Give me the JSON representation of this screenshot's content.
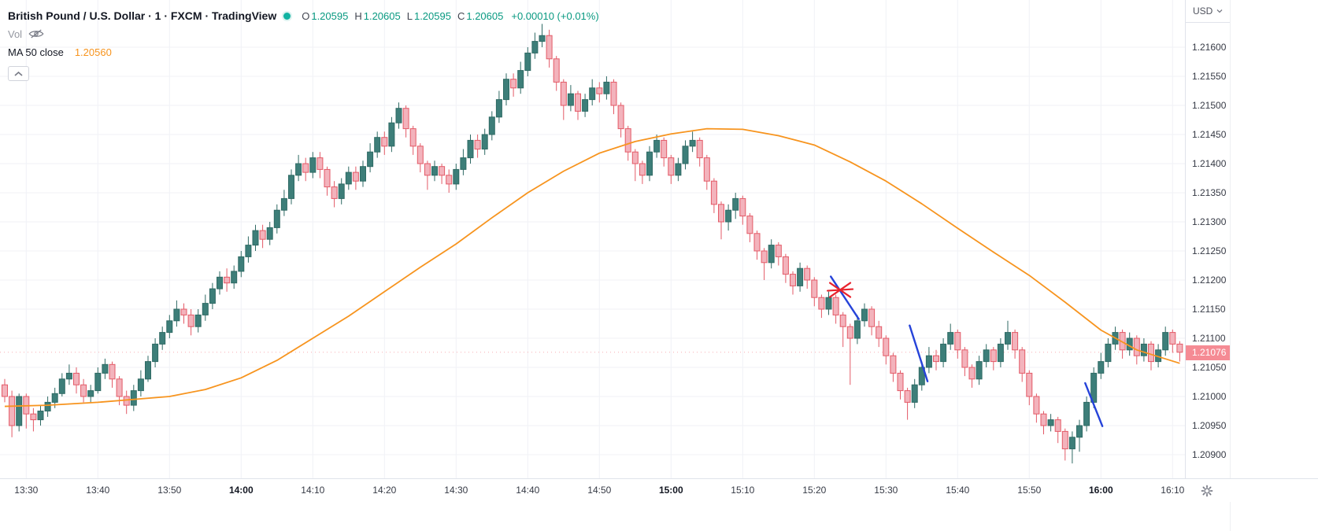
{
  "header": {
    "symbol_title": "British Pound / U.S. Dollar · 1 · FXCM · TradingView",
    "ohlc": {
      "o_label": "O",
      "o": "1.20595",
      "h_label": "H",
      "h": "1.20605",
      "l_label": "L",
      "l": "1.20595",
      "c_label": "C",
      "c": "1.20605",
      "change": "+0.00010 (+0.01%)"
    },
    "vol_label": "Vol",
    "ma_label": "MA 50 close",
    "ma_value": "1.20560"
  },
  "axis": {
    "currency_label": "USD"
  },
  "colors": {
    "up": "#3d7e79",
    "up_border": "#2f6a64",
    "down": "#f3b3bc",
    "down_border": "#e35a67",
    "ma": "#f7941e",
    "grid": "#f0f2f6",
    "drawing_blue": "#2643d9",
    "drawing_red": "#e8232d",
    "last_price_bg": "#f58b94",
    "accent_green": "#089981"
  },
  "chart_data": {
    "type": "candlestick",
    "title": "British Pound / U.S. Dollar",
    "interval": "1",
    "exchange": "FXCM",
    "ylim": [
      1.2088,
      1.2165
    ],
    "grid": true,
    "last_price": 1.21076,
    "price_gridlines": [
      1.216,
      1.2155,
      1.215,
      1.2145,
      1.214,
      1.2135,
      1.213,
      1.2125,
      1.212,
      1.2115,
      1.211,
      1.2105,
      1.21,
      1.2095,
      1.209
    ],
    "time_ticks": [
      {
        "i": 3,
        "label": "13:30",
        "bold": false
      },
      {
        "i": 13,
        "label": "13:40",
        "bold": false
      },
      {
        "i": 23,
        "label": "13:50",
        "bold": false
      },
      {
        "i": 33,
        "label": "14:00",
        "bold": true
      },
      {
        "i": 43,
        "label": "14:10",
        "bold": false
      },
      {
        "i": 53,
        "label": "14:20",
        "bold": false
      },
      {
        "i": 63,
        "label": "14:30",
        "bold": false
      },
      {
        "i": 73,
        "label": "14:40",
        "bold": false
      },
      {
        "i": 83,
        "label": "14:50",
        "bold": false
      },
      {
        "i": 93,
        "label": "15:00",
        "bold": true
      },
      {
        "i": 103,
        "label": "15:10",
        "bold": false
      },
      {
        "i": 113,
        "label": "15:20",
        "bold": false
      },
      {
        "i": 123,
        "label": "15:30",
        "bold": false
      },
      {
        "i": 133,
        "label": "15:40",
        "bold": false
      },
      {
        "i": 143,
        "label": "15:50",
        "bold": false
      },
      {
        "i": 153,
        "label": "16:00",
        "bold": true
      },
      {
        "i": 163,
        "label": "16:10",
        "bold": false
      }
    ],
    "candles": [
      [
        1.2102,
        1.2103,
        1.2099,
        1.21
      ],
      [
        1.21,
        1.2101,
        1.2093,
        1.2095
      ],
      [
        1.2095,
        1.21005,
        1.2094,
        1.21
      ],
      [
        1.21,
        1.21005,
        1.20945,
        1.2097
      ],
      [
        1.2097,
        1.2098,
        1.2094,
        1.2096
      ],
      [
        1.2096,
        1.20985,
        1.2095,
        1.20975
      ],
      [
        1.20975,
        1.21,
        1.20965,
        1.2099
      ],
      [
        1.2099,
        1.21015,
        1.2098,
        1.21005
      ],
      [
        1.21005,
        1.2104,
        1.21,
        1.2103
      ],
      [
        1.2103,
        1.21055,
        1.2102,
        1.2104
      ],
      [
        1.2104,
        1.2105,
        1.21005,
        1.2102
      ],
      [
        1.2102,
        1.2103,
        1.2099,
        1.21
      ],
      [
        1.21,
        1.2102,
        1.2099,
        1.2101
      ],
      [
        1.2101,
        1.2105,
        1.21005,
        1.2104
      ],
      [
        1.2104,
        1.21065,
        1.2103,
        1.21055
      ],
      [
        1.21055,
        1.2106,
        1.21015,
        1.2103
      ],
      [
        1.2103,
        1.21035,
        1.20985,
        1.21
      ],
      [
        1.21,
        1.2101,
        1.2097,
        1.20985
      ],
      [
        1.20985,
        1.2102,
        1.20975,
        1.2101
      ],
      [
        1.2101,
        1.21045,
        1.21,
        1.2103
      ],
      [
        1.2103,
        1.2107,
        1.21025,
        1.2106
      ],
      [
        1.2106,
        1.211,
        1.2105,
        1.2109
      ],
      [
        1.2109,
        1.2112,
        1.2108,
        1.2111
      ],
      [
        1.2111,
        1.2114,
        1.211,
        1.2113
      ],
      [
        1.2113,
        1.21165,
        1.2112,
        1.2115
      ],
      [
        1.2115,
        1.2116,
        1.21125,
        1.2114
      ],
      [
        1.2114,
        1.2115,
        1.21105,
        1.2112
      ],
      [
        1.2112,
        1.2115,
        1.2111,
        1.2114
      ],
      [
        1.2114,
        1.21175,
        1.2113,
        1.2116
      ],
      [
        1.2116,
        1.21195,
        1.2115,
        1.21185
      ],
      [
        1.21185,
        1.21215,
        1.21175,
        1.21205
      ],
      [
        1.21205,
        1.2122,
        1.2118,
        1.21195
      ],
      [
        1.21195,
        1.21225,
        1.21185,
        1.21215
      ],
      [
        1.21215,
        1.2125,
        1.21205,
        1.2124
      ],
      [
        1.2124,
        1.21275,
        1.2123,
        1.2126
      ],
      [
        1.2126,
        1.21295,
        1.2125,
        1.21285
      ],
      [
        1.21285,
        1.21295,
        1.21255,
        1.2127
      ],
      [
        1.2127,
        1.213,
        1.2126,
        1.2129
      ],
      [
        1.2129,
        1.2133,
        1.2128,
        1.2132
      ],
      [
        1.2132,
        1.21355,
        1.2131,
        1.2134
      ],
      [
        1.2134,
        1.2139,
        1.2133,
        1.2138
      ],
      [
        1.2138,
        1.21415,
        1.2137,
        1.214
      ],
      [
        1.214,
        1.2141,
        1.2137,
        1.21385
      ],
      [
        1.21385,
        1.2142,
        1.21375,
        1.2141
      ],
      [
        1.2141,
        1.2142,
        1.21375,
        1.2139
      ],
      [
        1.2139,
        1.21395,
        1.21345,
        1.2136
      ],
      [
        1.2136,
        1.2137,
        1.21325,
        1.2134
      ],
      [
        1.2134,
        1.21375,
        1.2133,
        1.21365
      ],
      [
        1.21365,
        1.21395,
        1.21355,
        1.21385
      ],
      [
        1.21385,
        1.21395,
        1.21355,
        1.2137
      ],
      [
        1.2137,
        1.21405,
        1.2136,
        1.21395
      ],
      [
        1.21395,
        1.21435,
        1.21385,
        1.2142
      ],
      [
        1.2142,
        1.21455,
        1.2141,
        1.21445
      ],
      [
        1.21445,
        1.21455,
        1.21415,
        1.2143
      ],
      [
        1.2143,
        1.2148,
        1.2142,
        1.2147
      ],
      [
        1.2147,
        1.21505,
        1.2146,
        1.21495
      ],
      [
        1.21495,
        1.215,
        1.21445,
        1.2146
      ],
      [
        1.2146,
        1.21465,
        1.21415,
        1.2143
      ],
      [
        1.2143,
        1.21435,
        1.21385,
        1.214
      ],
      [
        1.214,
        1.21405,
        1.21355,
        1.2138
      ],
      [
        1.2138,
        1.21405,
        1.2137,
        1.21395
      ],
      [
        1.21395,
        1.214,
        1.21365,
        1.2138
      ],
      [
        1.2138,
        1.2139,
        1.2135,
        1.21365
      ],
      [
        1.21365,
        1.214,
        1.21355,
        1.2139
      ],
      [
        1.2139,
        1.21425,
        1.2138,
        1.2141
      ],
      [
        1.2141,
        1.2145,
        1.214,
        1.2144
      ],
      [
        1.2144,
        1.2145,
        1.2141,
        1.21425
      ],
      [
        1.21425,
        1.2146,
        1.21415,
        1.2145
      ],
      [
        1.2145,
        1.2149,
        1.2144,
        1.2148
      ],
      [
        1.2148,
        1.21525,
        1.2147,
        1.2151
      ],
      [
        1.2151,
        1.21555,
        1.215,
        1.21545
      ],
      [
        1.21545,
        1.21555,
        1.21515,
        1.2153
      ],
      [
        1.2153,
        1.21575,
        1.2152,
        1.2156
      ],
      [
        1.2156,
        1.216,
        1.2155,
        1.2159
      ],
      [
        1.2159,
        1.21625,
        1.2158,
        1.2161
      ],
      [
        1.2161,
        1.2164,
        1.216,
        1.2162
      ],
      [
        1.2162,
        1.2163,
        1.21565,
        1.2158
      ],
      [
        1.2158,
        1.21585,
        1.21525,
        1.2154
      ],
      [
        1.2154,
        1.21545,
        1.21475,
        1.215
      ],
      [
        1.215,
        1.21535,
        1.2149,
        1.2152
      ],
      [
        1.2152,
        1.21525,
        1.21475,
        1.2149
      ],
      [
        1.2149,
        1.2152,
        1.2148,
        1.2151
      ],
      [
        1.2151,
        1.21545,
        1.215,
        1.2153
      ],
      [
        1.2153,
        1.2154,
        1.21505,
        1.2152
      ],
      [
        1.2152,
        1.2155,
        1.2151,
        1.2154
      ],
      [
        1.2154,
        1.21545,
        1.21485,
        1.215
      ],
      [
        1.215,
        1.21505,
        1.21445,
        1.2146
      ],
      [
        1.2146,
        1.21465,
        1.21405,
        1.2142
      ],
      [
        1.2142,
        1.21425,
        1.2137,
        1.214
      ],
      [
        1.214,
        1.21405,
        1.21365,
        1.2138
      ],
      [
        1.2138,
        1.2143,
        1.2137,
        1.2142
      ],
      [
        1.2142,
        1.2145,
        1.2141,
        1.2144
      ],
      [
        1.2144,
        1.21445,
        1.21395,
        1.2141
      ],
      [
        1.2141,
        1.21415,
        1.21365,
        1.2138
      ],
      [
        1.2138,
        1.2141,
        1.2137,
        1.214
      ],
      [
        1.214,
        1.2144,
        1.2139,
        1.2143
      ],
      [
        1.2143,
        1.21455,
        1.2142,
        1.2144
      ],
      [
        1.2144,
        1.21445,
        1.21395,
        1.2141
      ],
      [
        1.2141,
        1.21415,
        1.21355,
        1.2137
      ],
      [
        1.2137,
        1.21375,
        1.21315,
        1.2133
      ],
      [
        1.2133,
        1.21335,
        1.2127,
        1.213
      ],
      [
        1.213,
        1.2133,
        1.21285,
        1.2132
      ],
      [
        1.2132,
        1.2135,
        1.21305,
        1.2134
      ],
      [
        1.2134,
        1.21345,
        1.21295,
        1.2131
      ],
      [
        1.2131,
        1.21315,
        1.21265,
        1.2128
      ],
      [
        1.2128,
        1.21285,
        1.21235,
        1.2125
      ],
      [
        1.2125,
        1.21255,
        1.212,
        1.2123
      ],
      [
        1.2123,
        1.2127,
        1.2122,
        1.2126
      ],
      [
        1.2126,
        1.21265,
        1.21225,
        1.2124
      ],
      [
        1.2124,
        1.21245,
        1.21195,
        1.2121
      ],
      [
        1.2121,
        1.21215,
        1.21175,
        1.2119
      ],
      [
        1.2119,
        1.2123,
        1.2118,
        1.2122
      ],
      [
        1.2122,
        1.21225,
        1.21185,
        1.212
      ],
      [
        1.212,
        1.21205,
        1.21155,
        1.2117
      ],
      [
        1.2117,
        1.21175,
        1.21135,
        1.2115
      ],
      [
        1.2115,
        1.2118,
        1.2114,
        1.2117
      ],
      [
        1.2117,
        1.21175,
        1.21125,
        1.2114
      ],
      [
        1.2114,
        1.21145,
        1.21085,
        1.2112
      ],
      [
        1.2112,
        1.21125,
        1.2102,
        1.211
      ],
      [
        1.211,
        1.2114,
        1.2109,
        1.2113
      ],
      [
        1.2113,
        1.2116,
        1.2112,
        1.2115
      ],
      [
        1.2115,
        1.21155,
        1.21105,
        1.2112
      ],
      [
        1.2112,
        1.2113,
        1.21085,
        1.211
      ],
      [
        1.211,
        1.21105,
        1.21055,
        1.2107
      ],
      [
        1.2107,
        1.21075,
        1.21025,
        1.2104
      ],
      [
        1.2104,
        1.21045,
        1.20995,
        1.2101
      ],
      [
        1.2101,
        1.21015,
        1.2096,
        1.2099
      ],
      [
        1.2099,
        1.2103,
        1.2098,
        1.2102
      ],
      [
        1.2102,
        1.2106,
        1.2101,
        1.2105
      ],
      [
        1.2105,
        1.21085,
        1.2104,
        1.2107
      ],
      [
        1.2107,
        1.2108,
        1.21045,
        1.2106
      ],
      [
        1.2106,
        1.211,
        1.2105,
        1.2109
      ],
      [
        1.2109,
        1.21125,
        1.2108,
        1.2111
      ],
      [
        1.2111,
        1.21115,
        1.21065,
        1.2108
      ],
      [
        1.2108,
        1.21085,
        1.21035,
        1.2105
      ],
      [
        1.2105,
        1.21055,
        1.21015,
        1.2103
      ],
      [
        1.2103,
        1.2107,
        1.2102,
        1.2106
      ],
      [
        1.2106,
        1.2109,
        1.2105,
        1.2108
      ],
      [
        1.2108,
        1.21085,
        1.21045,
        1.2106
      ],
      [
        1.2106,
        1.211,
        1.2105,
        1.2109
      ],
      [
        1.2109,
        1.2113,
        1.2108,
        1.2111
      ],
      [
        1.2111,
        1.21115,
        1.21065,
        1.2108
      ],
      [
        1.2108,
        1.21085,
        1.21025,
        1.2104
      ],
      [
        1.2104,
        1.21045,
        1.20985,
        1.21
      ],
      [
        1.21,
        1.21005,
        1.20955,
        1.2097
      ],
      [
        1.2097,
        1.20975,
        1.20935,
        1.2095
      ],
      [
        1.2095,
        1.2097,
        1.2094,
        1.2096
      ],
      [
        1.2096,
        1.20965,
        1.2092,
        1.2094
      ],
      [
        1.2094,
        1.20945,
        1.2089,
        1.2091
      ],
      [
        1.2091,
        1.2094,
        1.20885,
        1.2093
      ],
      [
        1.2093,
        1.2096,
        1.20905,
        1.2095
      ],
      [
        1.2095,
        1.21,
        1.2094,
        1.2099
      ],
      [
        1.2099,
        1.2105,
        1.2098,
        1.2104
      ],
      [
        1.2104,
        1.21075,
        1.2103,
        1.2106
      ],
      [
        1.2106,
        1.211,
        1.2105,
        1.2109
      ],
      [
        1.2109,
        1.2112,
        1.2108,
        1.2111
      ],
      [
        1.2111,
        1.21115,
        1.21065,
        1.2108
      ],
      [
        1.2108,
        1.2111,
        1.2107,
        1.211
      ],
      [
        1.211,
        1.21105,
        1.21055,
        1.2107
      ],
      [
        1.2107,
        1.211,
        1.2106,
        1.2109
      ],
      [
        1.2109,
        1.21095,
        1.21045,
        1.2106
      ],
      [
        1.2106,
        1.2109,
        1.2105,
        1.2108
      ],
      [
        1.2108,
        1.2112,
        1.2107,
        1.2111
      ],
      [
        1.2111,
        1.21115,
        1.21075,
        1.2109
      ],
      [
        1.2109,
        1.21095,
        1.2106,
        1.21076
      ]
    ],
    "ma50": {
      "name": "MA 50 close",
      "color": "#f7941e",
      "points": [
        [
          0,
          1.20983
        ],
        [
          6,
          1.20985
        ],
        [
          13,
          1.2099
        ],
        [
          23,
          1.21
        ],
        [
          28,
          1.21012
        ],
        [
          33,
          1.21032
        ],
        [
          38,
          1.21062
        ],
        [
          43,
          1.211
        ],
        [
          48,
          1.21138
        ],
        [
          53,
          1.2118
        ],
        [
          58,
          1.21222
        ],
        [
          63,
          1.21262
        ],
        [
          68,
          1.21307
        ],
        [
          73,
          1.2135
        ],
        [
          78,
          1.21387
        ],
        [
          83,
          1.21418
        ],
        [
          88,
          1.21438
        ],
        [
          93,
          1.21451
        ],
        [
          98,
          1.2146
        ],
        [
          103,
          1.21459
        ],
        [
          108,
          1.21448
        ],
        [
          113,
          1.21432
        ],
        [
          118,
          1.21403
        ],
        [
          123,
          1.2137
        ],
        [
          128,
          1.21331
        ],
        [
          133,
          1.21289
        ],
        [
          138,
          1.21248
        ],
        [
          143,
          1.21208
        ],
        [
          148,
          1.21162
        ],
        [
          153,
          1.21114
        ],
        [
          158,
          1.2108
        ],
        [
          164,
          1.21057
        ]
      ]
    },
    "drawings": {
      "trendlines": [
        {
          "i1": 115.3,
          "p1": 1.21206,
          "i2": 119.2,
          "p2": 1.21133
        },
        {
          "i1": 126.3,
          "p1": 1.21122,
          "i2": 128.8,
          "p2": 1.21026
        },
        {
          "i1": 150.8,
          "p1": 1.21023,
          "i2": 153.2,
          "p2": 1.20949
        }
      ],
      "cross": {
        "i": 116.6,
        "p": 1.21183
      }
    }
  }
}
